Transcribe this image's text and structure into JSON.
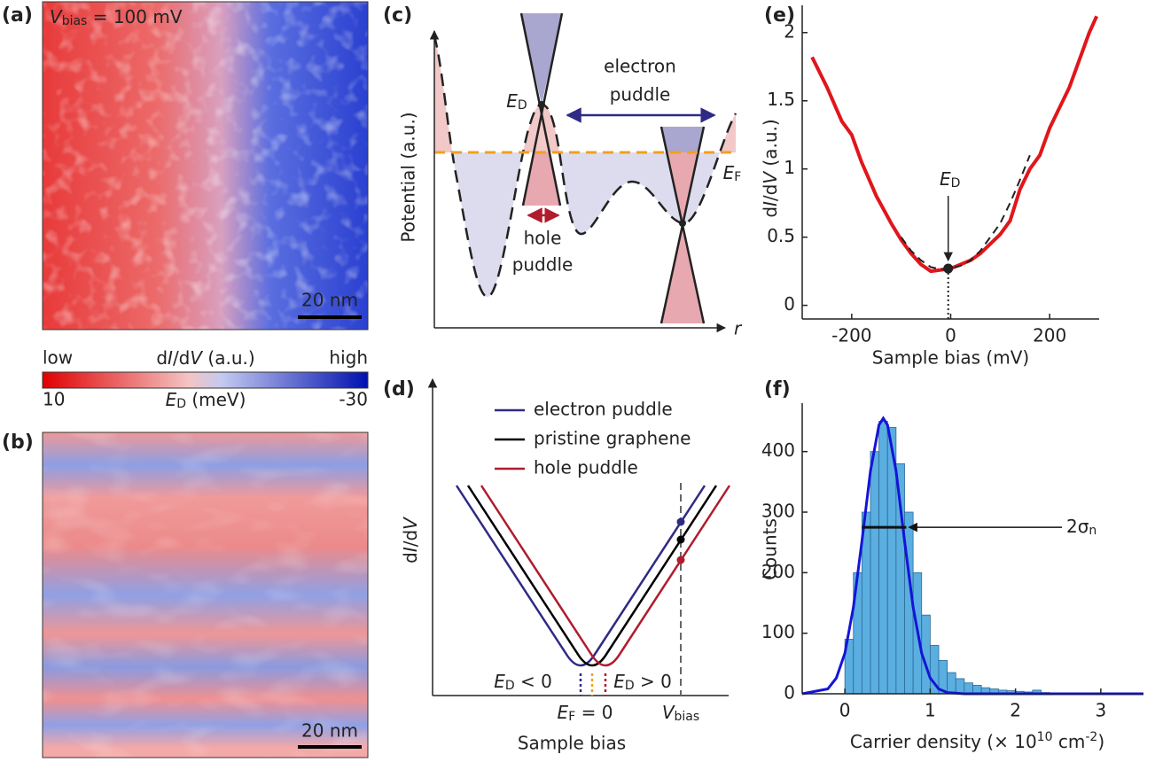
{
  "panels": {
    "a": {
      "label": "(a)",
      "vbias": [
        "V",
        "bias",
        " = 100 mV"
      ],
      "scalebar": "20 nm"
    },
    "colorbar": {
      "low": "low",
      "high": "high",
      "quantity": [
        "d",
        "I",
        "/d",
        "V",
        " (a.u.)"
      ],
      "energy": [
        "E",
        "D",
        " (meV)"
      ],
      "lim": [
        10,
        -30
      ],
      "ticks": [
        10,
        -30
      ]
    },
    "b": {
      "label": "(b)",
      "scalebar": "20 nm"
    },
    "c": {
      "label": "(c)",
      "ylabel": "Potential (a.u.)",
      "xlabel": "r",
      "dirac": [
        "E",
        "D"
      ],
      "fermi": [
        "E",
        "F"
      ],
      "electron": [
        "electron",
        "puddle"
      ],
      "hole": [
        "hole",
        "puddle"
      ]
    },
    "d": {
      "label": "(d)",
      "legend": [
        {
          "name": "electron puddle",
          "color": "#2f2a85"
        },
        {
          "name": "pristine graphene",
          "color": "#000000"
        },
        {
          "name": "hole puddle",
          "color": "#b01c2e"
        }
      ],
      "ylabel": [
        "d",
        "I",
        "/d",
        "V"
      ],
      "xlabel": "Sample bias",
      "ed_neg": [
        "E",
        "D",
        " < 0"
      ],
      "ef": [
        "E",
        "F",
        " = 0"
      ],
      "ed_pos": [
        "E",
        "D",
        " > 0"
      ],
      "vbias": [
        "V",
        "bias"
      ]
    }
  },
  "chart_data": [
    {
      "type": "line",
      "label": "(e)",
      "xlabel": "Sample bias (mV)",
      "ylabel": [
        "d",
        "I",
        "/d",
        "V",
        "  (a.u.)"
      ],
      "xlim": [
        -300,
        300
      ],
      "ylim": [
        -0.1,
        2.2
      ],
      "xticks": [
        -200,
        0,
        200
      ],
      "yticks": [
        0,
        0.5,
        1,
        1.5,
        2
      ],
      "series": [
        {
          "color": "#e0161b",
          "x": [
            -280,
            -250,
            -220,
            -200,
            -180,
            -150,
            -120,
            -100,
            -80,
            -60,
            -40,
            -20,
            0,
            20,
            40,
            60,
            80,
            100,
            120,
            140,
            160,
            180,
            200,
            220,
            240,
            260,
            280,
            295
          ],
          "values": [
            1.82,
            1.6,
            1.35,
            1.25,
            1.05,
            0.8,
            0.6,
            0.48,
            0.38,
            0.3,
            0.25,
            0.26,
            0.27,
            0.3,
            0.33,
            0.38,
            0.45,
            0.52,
            0.62,
            0.85,
            1.0,
            1.1,
            1.3,
            1.45,
            1.6,
            1.8,
            2.0,
            2.12
          ]
        },
        {
          "color": "#222222",
          "dashed": true,
          "x": [
            -100,
            -80,
            -60,
            -40,
            -20,
            0,
            20,
            40,
            60,
            80,
            100,
            120,
            140,
            160
          ],
          "values": [
            0.5,
            0.4,
            0.33,
            0.28,
            0.265,
            0.27,
            0.29,
            0.33,
            0.4,
            0.5,
            0.6,
            0.75,
            0.92,
            1.1
          ]
        }
      ],
      "marker": {
        "x": -5,
        "y": 0.27,
        "text": [
          "E",
          "D"
        ]
      }
    },
    {
      "type": "histogram",
      "label": "(f)",
      "xlabel": [
        "Carrier density (× 10",
        "10",
        " cm",
        "-2",
        ")"
      ],
      "ylabel": "Counts",
      "xlim": [
        -0.5,
        3.5
      ],
      "ylim": [
        0,
        480
      ],
      "xticks": [
        0,
        1,
        2,
        3
      ],
      "yticks": [
        0,
        100,
        200,
        300,
        400
      ],
      "color": "#5aaee0",
      "bins": [
        0,
        0.1,
        0.2,
        0.3,
        0.4,
        0.5,
        0.6,
        0.7,
        0.8,
        0.9,
        1,
        1.1,
        1.2,
        1.3,
        1.4,
        1.5,
        1.6,
        1.7,
        1.8,
        1.9,
        2,
        2.1,
        2.2,
        2.3,
        2.4
      ],
      "values": [
        90,
        200,
        300,
        400,
        450,
        440,
        380,
        300,
        200,
        130,
        80,
        55,
        35,
        25,
        18,
        14,
        10,
        8,
        6,
        5,
        4,
        3,
        6,
        2
      ],
      "fit": {
        "color": "#1414d8",
        "x": [
          -0.5,
          -0.2,
          -0.1,
          0,
          0.1,
          0.2,
          0.3,
          0.4,
          0.45,
          0.5,
          0.6,
          0.7,
          0.8,
          0.9,
          1,
          1.1,
          1.2,
          1.4,
          3.5
        ],
        "values": [
          0,
          8,
          26,
          67,
          143,
          252,
          368,
          444,
          455,
          444,
          368,
          252,
          143,
          67,
          26,
          8,
          2,
          0,
          0
        ]
      },
      "width": {
        "x": [
          0.2,
          0.72
        ],
        "y": 275,
        "text": [
          "2σ",
          "n"
        ]
      }
    }
  ]
}
